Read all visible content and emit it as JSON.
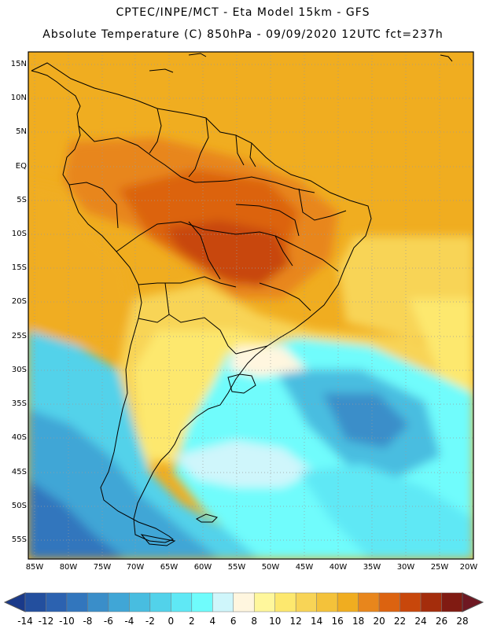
{
  "header": {
    "line1": "CPTEC/INPE/MCT -  Eta Model 15km - GFS",
    "line2": "Absolute Temperature (C) 850hPa - 09/09/2020 12UTC fct=237h"
  },
  "map": {
    "lat_labels": [
      "15N",
      "10N",
      "5N",
      "EQ",
      "5S",
      "10S",
      "15S",
      "20S",
      "25S",
      "30S",
      "35S",
      "40S",
      "45S",
      "50S",
      "55S"
    ],
    "lon_labels": [
      "85W",
      "80W",
      "75W",
      "70W",
      "65W",
      "60W",
      "55W",
      "50W",
      "45W",
      "40W",
      "35W",
      "30W",
      "25W",
      "20W"
    ],
    "gridlines": "dotted"
  },
  "colorbar": {
    "labels": [
      "-14",
      "-12",
      "-10",
      "-8",
      "-6",
      "-4",
      "-2",
      "0",
      "2",
      "4",
      "6",
      "8",
      "10",
      "12",
      "14",
      "16",
      "18",
      "20",
      "22",
      "24",
      "26",
      "28"
    ],
    "colors": [
      "#1a3a8a",
      "#234f9e",
      "#2c62b0",
      "#3276bd",
      "#3a8ec9",
      "#40a6d6",
      "#48bde0",
      "#52d2ea",
      "#5fe8f5",
      "#6ffcfc",
      "#cff6fb",
      "#fff6df",
      "#fff79c",
      "#fde86e",
      "#f8d456",
      "#f4c23a",
      "#f0ad20",
      "#e8861c",
      "#dc6310",
      "#c8470b",
      "#a42d0c",
      "#801b12",
      "#6e1822"
    ]
  },
  "palette": {
    "land_outline": "#000000",
    "grid": "#9a9a9a"
  }
}
